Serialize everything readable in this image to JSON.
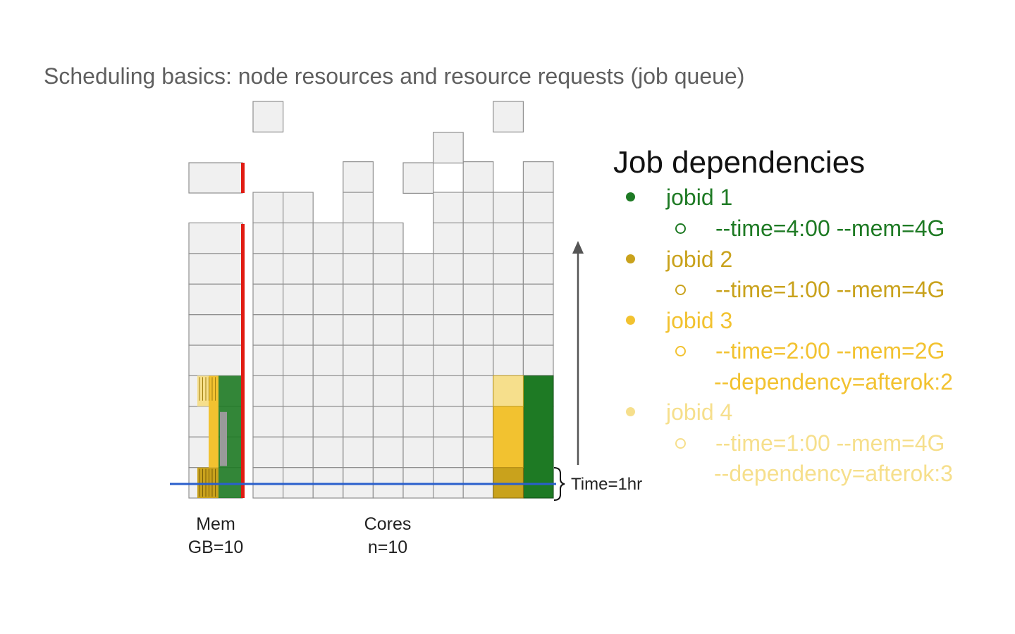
{
  "title": "Scheduling basics: node resources and resource requests (job queue)",
  "diagram": {
    "mem_label": "Mem",
    "mem_value": "GB=10",
    "cores_label": "Cores",
    "cores_value": "n=10",
    "time_label": "Time=1hr"
  },
  "dependencies": {
    "title": "Job dependencies",
    "jobs": [
      {
        "name": "jobid 1",
        "color": "#1e7a24",
        "options": [
          "--time=4:00 --mem=4G"
        ]
      },
      {
        "name": "jobid 2",
        "color": "#c9a21c",
        "options": [
          "--time=1:00 --mem=4G"
        ]
      },
      {
        "name": "jobid 3",
        "color": "#f2c230",
        "options": [
          "--time=2:00 --mem=2G",
          "--dependency=afterok:2"
        ]
      },
      {
        "name": "jobid 4",
        "color": "#f6df8c",
        "options": [
          "--time=1:00 --mem=4G",
          "--dependency=afterok:3"
        ]
      }
    ]
  },
  "colors": {
    "cell_fill": "#f0f0f0",
    "cell_stroke": "#8f8f8f",
    "red_line": "#e01b12",
    "blue_line": "#2a5fcc",
    "arrow": "#555555"
  }
}
